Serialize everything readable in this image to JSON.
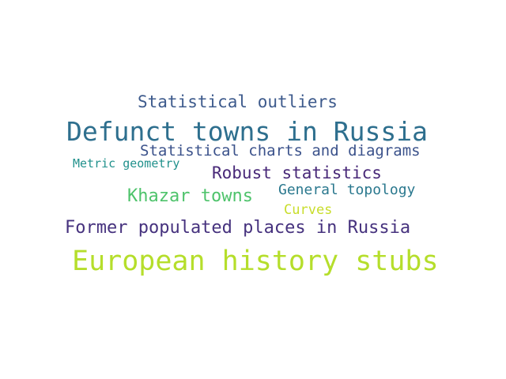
{
  "background_color": "#ffffff",
  "words": [
    {
      "text": "Statistical outliers",
      "color": "#3d5a8c"
    },
    {
      "text": "Defunct towns in Russia",
      "color": "#2e6f8e"
    },
    {
      "text": "Statistical charts and diagrams",
      "color": "#3b528b"
    },
    {
      "text": "Metric geometry",
      "color": "#21918c"
    },
    {
      "text": "Robust statistics",
      "color": "#482878"
    },
    {
      "text": "Khazar towns",
      "color": "#4ec36b"
    },
    {
      "text": "General topology",
      "color": "#2a788e"
    },
    {
      "text": "Curves",
      "color": "#c8dd2a"
    },
    {
      "text": "Former populated places in Russia",
      "color": "#46327e"
    },
    {
      "text": "European history stubs",
      "color": "#b5de2b"
    }
  ]
}
